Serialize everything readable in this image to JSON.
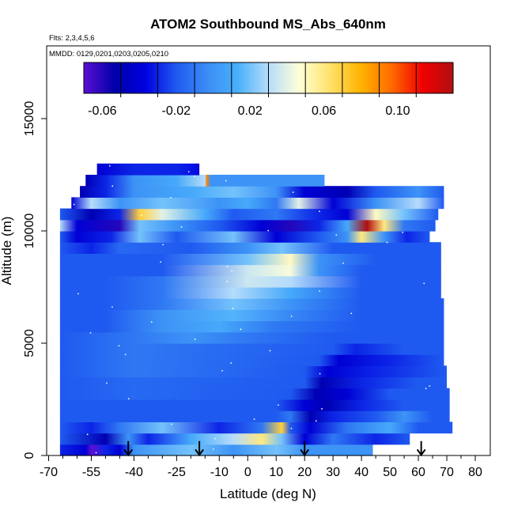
{
  "chart_data": {
    "type": "heatmap",
    "title": "ATOM2 Southbound MS_Abs_640nm",
    "subtitle_flights": "Flts: 2,3,4,5,6",
    "subtitle_dates": "MMDD: 0129,0201,0203,0205,0210",
    "xlabel": "Latitude (deg N)",
    "ylabel": "Altitude (m)",
    "xlim": [
      -70,
      80
    ],
    "ylim": [
      0,
      17000
    ],
    "x_ticks": [
      {
        "value": -70,
        "label": "-70"
      },
      {
        "value": -55,
        "label": "-55"
      },
      {
        "value": -40,
        "label": "-40"
      },
      {
        "value": -25,
        "label": "-25"
      },
      {
        "value": -10,
        "label": "-10"
      },
      {
        "value": 0,
        "label": "0"
      },
      {
        "value": 10,
        "label": "10"
      },
      {
        "value": 20,
        "label": "20"
      },
      {
        "value": 30,
        "label": "30"
      },
      {
        "value": 40,
        "label": "40"
      },
      {
        "value": 50,
        "label": "50"
      },
      {
        "value": 60,
        "label": "60"
      },
      {
        "value": 70,
        "label": "70"
      },
      {
        "value": 80,
        "label": "80"
      }
    ],
    "x_minor_ticks": [
      -65,
      -60,
      -50,
      -45,
      -35,
      -30,
      -20,
      -15,
      -5,
      5,
      15,
      25,
      35,
      45,
      55,
      65,
      75
    ],
    "y_ticks": [
      {
        "value": 0,
        "label": "0"
      },
      {
        "value": 5000,
        "label": "5000"
      },
      {
        "value": 10000,
        "label": "10000"
      },
      {
        "value": 15000,
        "label": "15000"
      }
    ],
    "colorbar": {
      "min": -0.07,
      "max": 0.13,
      "tick_values": [
        -0.06,
        -0.02,
        0.02,
        0.06,
        0.1
      ],
      "tick_labels": [
        "-0.06",
        "-0.02",
        "0.02",
        "0.06",
        "0.10"
      ],
      "colors": [
        "#5b0fd4",
        "#0000a8",
        "#0000e0",
        "#1f5af0",
        "#3a8cf5",
        "#49b0fb",
        "#b5dcfb",
        "#ffffd8",
        "#ffe26a",
        "#ffb300",
        "#ff6a00",
        "#f00000",
        "#b01010"
      ]
    },
    "arrows_latitude": [
      -42,
      -17,
      20,
      61
    ],
    "band_height_m": 500,
    "bands": [
      {
        "alt": 0,
        "lat_min": -66,
        "lat_max": 44,
        "knots": [
          [
            -66,
            -0.03
          ],
          [
            -57,
            -0.04
          ],
          [
            -55,
            -0.07
          ],
          [
            -50,
            -0.03
          ],
          [
            -45,
            -0.04
          ],
          [
            -40,
            0.0
          ],
          [
            -20,
            0.02
          ],
          [
            -5,
            0.0
          ],
          [
            10,
            0.02
          ],
          [
            20,
            0.0
          ],
          [
            30,
            0.0
          ],
          [
            44,
            0.0
          ]
        ]
      },
      {
        "alt": 500,
        "lat_min": -66,
        "lat_max": 57,
        "knots": [
          [
            -66,
            -0.02
          ],
          [
            -50,
            -0.05
          ],
          [
            -42,
            0.0
          ],
          [
            -35,
            -0.03
          ],
          [
            -20,
            0.01
          ],
          [
            -5,
            0.03
          ],
          [
            5,
            0.06
          ],
          [
            12,
            0.02
          ],
          [
            20,
            -0.04
          ],
          [
            30,
            -0.01
          ],
          [
            45,
            -0.03
          ],
          [
            57,
            -0.02
          ]
        ]
      },
      {
        "alt": 1000,
        "lat_min": -66,
        "lat_max": 72,
        "knots": [
          [
            -66,
            -0.02
          ],
          [
            -55,
            -0.03
          ],
          [
            -45,
            -0.01
          ],
          [
            -30,
            0.02
          ],
          [
            -10,
            -0.03
          ],
          [
            5,
            -0.01
          ],
          [
            12,
            0.07
          ],
          [
            15,
            -0.02
          ],
          [
            22,
            -0.04
          ],
          [
            35,
            -0.01
          ],
          [
            50,
            0.01
          ],
          [
            60,
            -0.02
          ],
          [
            72,
            -0.02
          ]
        ]
      },
      {
        "alt": 1500,
        "lat_min": -66,
        "lat_max": 71,
        "knots": [
          [
            -66,
            -0.02
          ],
          [
            -40,
            -0.02
          ],
          [
            10,
            -0.02
          ],
          [
            15,
            -0.01
          ],
          [
            22,
            -0.05
          ],
          [
            30,
            -0.03
          ],
          [
            45,
            -0.02
          ],
          [
            55,
            0.0
          ],
          [
            65,
            -0.02
          ],
          [
            71,
            -0.02
          ]
        ]
      },
      {
        "alt": 2000,
        "lat_min": -66,
        "lat_max": 71,
        "knots": [
          [
            -66,
            -0.02
          ],
          [
            -40,
            -0.02
          ],
          [
            10,
            -0.02
          ],
          [
            20,
            -0.04
          ],
          [
            28,
            -0.05
          ],
          [
            40,
            -0.03
          ],
          [
            55,
            -0.02
          ],
          [
            71,
            -0.02
          ]
        ]
      },
      {
        "alt": 2500,
        "lat_min": -66,
        "lat_max": 71,
        "knots": [
          [
            -66,
            -0.02
          ],
          [
            -40,
            -0.015
          ],
          [
            15,
            -0.02
          ],
          [
            24,
            -0.05
          ],
          [
            35,
            -0.04
          ],
          [
            50,
            -0.02
          ],
          [
            71,
            -0.02
          ]
        ]
      },
      {
        "alt": 3000,
        "lat_min": -66,
        "lat_max": 70,
        "knots": [
          [
            -66,
            -0.02
          ],
          [
            -40,
            -0.015
          ],
          [
            20,
            -0.02
          ],
          [
            26,
            -0.05
          ],
          [
            40,
            -0.03
          ],
          [
            60,
            -0.02
          ],
          [
            70,
            -0.02
          ]
        ]
      },
      {
        "alt": 3500,
        "lat_min": -66,
        "lat_max": 70,
        "knots": [
          [
            -66,
            -0.02
          ],
          [
            -40,
            -0.01
          ],
          [
            20,
            -0.02
          ],
          [
            28,
            -0.04
          ],
          [
            45,
            -0.03
          ],
          [
            70,
            -0.02
          ]
        ]
      },
      {
        "alt": 4000,
        "lat_min": -66,
        "lat_max": 69,
        "knots": [
          [
            -66,
            -0.02
          ],
          [
            -40,
            -0.01
          ],
          [
            25,
            -0.02
          ],
          [
            32,
            -0.04
          ],
          [
            50,
            -0.03
          ],
          [
            69,
            -0.02
          ]
        ]
      },
      {
        "alt": 4500,
        "lat_min": -66,
        "lat_max": 69,
        "knots": [
          [
            -66,
            -0.02
          ],
          [
            -40,
            -0.01
          ],
          [
            30,
            -0.02
          ],
          [
            38,
            -0.03
          ],
          [
            55,
            -0.02
          ],
          [
            69,
            -0.02
          ]
        ]
      },
      {
        "alt": 5000,
        "lat_min": -66,
        "lat_max": 69,
        "knots": [
          [
            -66,
            -0.02
          ],
          [
            -40,
            -0.01
          ],
          [
            -20,
            0.0
          ],
          [
            0,
            -0.01
          ],
          [
            30,
            -0.02
          ],
          [
            45,
            -0.02
          ],
          [
            69,
            -0.02
          ]
        ]
      },
      {
        "alt": 5500,
        "lat_min": -66,
        "lat_max": 69,
        "knots": [
          [
            -66,
            -0.02
          ],
          [
            -50,
            -0.02
          ],
          [
            -30,
            0.0
          ],
          [
            -10,
            0.01
          ],
          [
            10,
            -0.01
          ],
          [
            40,
            -0.02
          ],
          [
            69,
            -0.02
          ]
        ]
      },
      {
        "alt": 6000,
        "lat_min": -66,
        "lat_max": 69,
        "knots": [
          [
            -66,
            -0.02
          ],
          [
            -50,
            -0.02
          ],
          [
            -30,
            0.0
          ],
          [
            -5,
            0.015
          ],
          [
            15,
            -0.005
          ],
          [
            40,
            -0.02
          ],
          [
            69,
            -0.02
          ]
        ]
      },
      {
        "alt": 6500,
        "lat_min": -66,
        "lat_max": 69,
        "knots": [
          [
            -66,
            -0.02
          ],
          [
            -50,
            -0.02
          ],
          [
            -30,
            -0.01
          ],
          [
            -5,
            0.02
          ],
          [
            15,
            0.0
          ],
          [
            40,
            -0.02
          ],
          [
            69,
            -0.02
          ]
        ]
      },
      {
        "alt": 7000,
        "lat_min": -66,
        "lat_max": 68,
        "knots": [
          [
            -66,
            -0.02
          ],
          [
            -50,
            -0.02
          ],
          [
            -30,
            -0.01
          ],
          [
            -5,
            0.03
          ],
          [
            15,
            0.01
          ],
          [
            40,
            -0.02
          ],
          [
            68,
            -0.02
          ]
        ]
      },
      {
        "alt": 7500,
        "lat_min": -66,
        "lat_max": 68,
        "knots": [
          [
            -66,
            -0.02
          ],
          [
            -50,
            -0.02
          ],
          [
            -30,
            -0.01
          ],
          [
            0,
            0.035
          ],
          [
            15,
            0.03
          ],
          [
            40,
            -0.02
          ],
          [
            68,
            -0.02
          ]
        ]
      },
      {
        "alt": 8000,
        "lat_min": -66,
        "lat_max": 68,
        "knots": [
          [
            -66,
            -0.02
          ],
          [
            -50,
            -0.02
          ],
          [
            -30,
            -0.02
          ],
          [
            0,
            0.035
          ],
          [
            15,
            0.045
          ],
          [
            25,
            0.0
          ],
          [
            40,
            -0.02
          ],
          [
            68,
            -0.02
          ]
        ]
      },
      {
        "alt": 8500,
        "lat_min": -66,
        "lat_max": 68,
        "knots": [
          [
            -66,
            -0.02
          ],
          [
            -50,
            -0.02
          ],
          [
            -30,
            -0.02
          ],
          [
            0,
            0.02
          ],
          [
            15,
            0.05
          ],
          [
            25,
            0.0
          ],
          [
            45,
            -0.02
          ],
          [
            68,
            -0.02
          ]
        ]
      },
      {
        "alt": 9000,
        "lat_min": -66,
        "lat_max": 68,
        "knots": [
          [
            -66,
            -0.02
          ],
          [
            -55,
            -0.03
          ],
          [
            -45,
            -0.015
          ],
          [
            -20,
            -0.02
          ],
          [
            0,
            0.0
          ],
          [
            12,
            0.02
          ],
          [
            30,
            -0.02
          ],
          [
            50,
            -0.02
          ],
          [
            68,
            -0.02
          ]
        ]
      },
      {
        "alt": 9500,
        "lat_min": -66,
        "lat_max": 64,
        "knots": [
          [
            -66,
            -0.02
          ],
          [
            -60,
            -0.04
          ],
          [
            -48,
            -0.03
          ],
          [
            -38,
            0.02
          ],
          [
            -25,
            -0.02
          ],
          [
            -5,
            0.02
          ],
          [
            10,
            -0.04
          ],
          [
            25,
            -0.02
          ],
          [
            35,
            0.0
          ],
          [
            40,
            0.06
          ],
          [
            48,
            0.0
          ],
          [
            56,
            -0.03
          ],
          [
            64,
            -0.02
          ]
        ]
      },
      {
        "alt": 10000,
        "lat_min": -66,
        "lat_max": 66,
        "knots": [
          [
            -66,
            0.03
          ],
          [
            -60,
            -0.04
          ],
          [
            -45,
            -0.06
          ],
          [
            -38,
            0.02
          ],
          [
            -25,
            0.0
          ],
          [
            -10,
            -0.02
          ],
          [
            5,
            -0.04
          ],
          [
            15,
            -0.06
          ],
          [
            25,
            -0.03
          ],
          [
            35,
            0.01
          ],
          [
            42,
            0.13
          ],
          [
            48,
            0.06
          ],
          [
            55,
            -0.01
          ],
          [
            66,
            -0.02
          ]
        ]
      },
      {
        "alt": 10500,
        "lat_min": -66,
        "lat_max": 67,
        "knots": [
          [
            -66,
            -0.02
          ],
          [
            -55,
            -0.05
          ],
          [
            -45,
            -0.03
          ],
          [
            -38,
            0.07
          ],
          [
            -30,
            0.04
          ],
          [
            -15,
            0.01
          ],
          [
            -5,
            -0.02
          ],
          [
            10,
            -0.01
          ],
          [
            25,
            -0.03
          ],
          [
            35,
            -0.04
          ],
          [
            45,
            0.05
          ],
          [
            55,
            0.02
          ],
          [
            67,
            -0.02
          ]
        ]
      },
      {
        "alt": 11000,
        "lat_min": -62,
        "lat_max": 69,
        "knots": [
          [
            -62,
            -0.04
          ],
          [
            -55,
            0.03
          ],
          [
            -45,
            0.0
          ],
          [
            -30,
            0.02
          ],
          [
            -10,
            0.0
          ],
          [
            0,
            0.01
          ],
          [
            10,
            -0.01
          ],
          [
            18,
            0.04
          ],
          [
            30,
            -0.04
          ],
          [
            45,
            0.0
          ],
          [
            60,
            0.03
          ],
          [
            69,
            -0.02
          ]
        ]
      },
      {
        "alt": 11500,
        "lat_min": -59,
        "lat_max": 69,
        "knots": [
          [
            -59,
            -0.05
          ],
          [
            -50,
            -0.03
          ],
          [
            -40,
            0.0
          ],
          [
            -20,
            0.01
          ],
          [
            -5,
            0.02
          ],
          [
            10,
            0.0
          ],
          [
            20,
            -0.04
          ],
          [
            35,
            -0.05
          ],
          [
            45,
            -0.02
          ],
          [
            60,
            0.0
          ],
          [
            69,
            -0.02
          ]
        ]
      },
      {
        "alt": 12000,
        "lat_min": -57,
        "lat_max": 27,
        "knots": [
          [
            -57,
            -0.05
          ],
          [
            -50,
            -0.03
          ],
          [
            -40,
            0.0
          ],
          [
            -25,
            0.01
          ],
          [
            -15,
            0.03
          ],
          [
            -14.5,
            0.09
          ],
          [
            -13,
            0.0
          ],
          [
            0,
            0.0
          ],
          [
            15,
            0.0
          ],
          [
            27,
            0.0
          ]
        ]
      },
      {
        "alt": 12500,
        "lat_min": -53,
        "lat_max": -17,
        "knots": [
          [
            -53,
            -0.04
          ],
          [
            -40,
            -0.03
          ],
          [
            -25,
            -0.03
          ],
          [
            -17,
            -0.035
          ]
        ]
      }
    ]
  }
}
